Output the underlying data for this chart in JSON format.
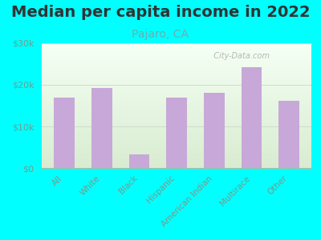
{
  "title": "Median per capita income in 2022",
  "subtitle": "Pajaro, CA",
  "categories": [
    "All",
    "White",
    "Black",
    "Hispanic",
    "American Indian",
    "Multirace",
    "Other"
  ],
  "values": [
    17000,
    19200,
    3200,
    17000,
    18000,
    24200,
    16200
  ],
  "bar_color": "#c8a8d8",
  "background_color": "#00FFFF",
  "plot_bg_top": "#f5fff5",
  "plot_bg_bottom": "#d8ecd0",
  "ylim": [
    0,
    30000
  ],
  "yticks": [
    0,
    10000,
    20000,
    30000
  ],
  "ytick_labels": [
    "$0",
    "$10k",
    "$20k",
    "$30k"
  ],
  "title_fontsize": 14,
  "subtitle_fontsize": 10,
  "subtitle_color": "#6aafaf",
  "title_color": "#333333",
  "tick_color": "#7a9a8a",
  "watermark": "  City-Data.com",
  "grid_color": "#ccddcc"
}
